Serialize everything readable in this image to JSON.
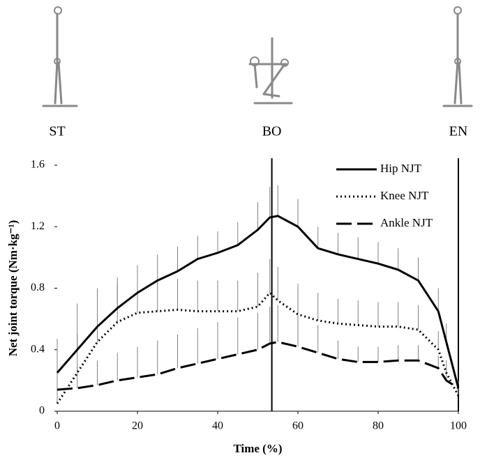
{
  "chart_data": {
    "type": "line",
    "xlabel": "Time (%)",
    "ylabel": "Net joint torque (Nm·kg⁻¹)",
    "x": [
      0,
      5,
      10,
      15,
      20,
      25,
      30,
      35,
      40,
      45,
      50,
      53,
      55,
      60,
      65,
      70,
      75,
      80,
      85,
      90,
      95,
      97,
      100
    ],
    "series": [
      {
        "name": "Hip NJT",
        "color": "#000000",
        "style": "solid",
        "values": [
          0.25,
          0.4,
          0.55,
          0.67,
          0.77,
          0.85,
          0.91,
          0.99,
          1.03,
          1.08,
          1.18,
          1.26,
          1.27,
          1.2,
          1.06,
          1.02,
          0.99,
          0.96,
          0.92,
          0.85,
          0.65,
          0.45,
          0.15
        ],
        "errors": [
          0.22,
          0.3,
          0.25,
          0.2,
          0.18,
          0.17,
          0.16,
          0.15,
          0.14,
          0.15,
          0.18,
          0.2,
          0.2,
          0.18,
          0.14,
          0.14,
          0.14,
          0.14,
          0.14,
          0.15,
          0.15,
          0.12,
          0.05
        ]
      },
      {
        "name": "Knee NJT",
        "color": "#000000",
        "style": "dotted",
        "values": [
          0.05,
          0.25,
          0.45,
          0.58,
          0.64,
          0.65,
          0.66,
          0.65,
          0.65,
          0.65,
          0.68,
          0.77,
          0.72,
          0.63,
          0.59,
          0.57,
          0.56,
          0.55,
          0.55,
          0.53,
          0.4,
          0.25,
          0.1
        ],
        "errors": [
          0.1,
          0.25,
          0.3,
          0.25,
          0.22,
          0.2,
          0.2,
          0.2,
          0.2,
          0.2,
          0.22,
          0.22,
          0.22,
          0.2,
          0.18,
          0.16,
          0.16,
          0.16,
          0.16,
          0.16,
          0.12,
          0.08,
          0.05
        ]
      },
      {
        "name": "Ankle NJT",
        "color": "#000000",
        "style": "dashed",
        "values": [
          0.14,
          0.15,
          0.17,
          0.2,
          0.22,
          0.24,
          0.28,
          0.31,
          0.34,
          0.37,
          0.4,
          0.44,
          0.45,
          0.42,
          0.38,
          0.34,
          0.32,
          0.32,
          0.33,
          0.33,
          0.28,
          0.2,
          0.15
        ],
        "errors": [
          0.12,
          0.14,
          0.16,
          0.18,
          0.2,
          0.22,
          0.22,
          0.23,
          0.24,
          0.24,
          0.24,
          0.24,
          0.24,
          0.22,
          0.18,
          0.12,
          0.1,
          0.1,
          0.1,
          0.1,
          0.08,
          0.06,
          0.04
        ]
      }
    ],
    "error_color": "#808080",
    "xlim": [
      0,
      100
    ],
    "xticks": [
      0,
      20,
      40,
      60,
      80,
      100
    ],
    "ylim": [
      0,
      1.6
    ],
    "yticks": [
      0,
      0.4,
      0.8,
      1.2,
      1.6
    ],
    "phases": [
      {
        "label": "ST",
        "x": 0
      },
      {
        "label": "BO",
        "x": 53.5
      },
      {
        "label": "EN",
        "x": 100
      }
    ],
    "phase_lines": [
      53.5,
      100
    ],
    "legend": "top-right"
  }
}
